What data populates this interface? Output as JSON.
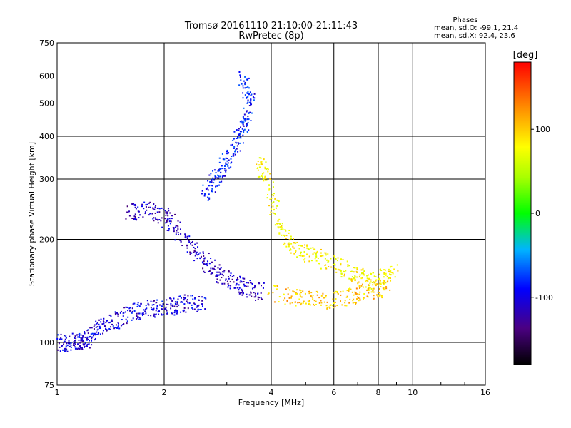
{
  "chart_data": {
    "type": "scatter",
    "title": "Tromsø 20161110 21:10:00-21:11:43",
    "subtitle": "RwPretec (8p)",
    "xlabel": "Frequency [MHz]",
    "ylabel": "Stationary phase Virtual Height [km]",
    "x_scale": "log",
    "y_scale": "log",
    "xlim": [
      1,
      16
    ],
    "ylim": [
      75,
      750
    ],
    "x_ticks": [
      "1",
      "2",
      "4",
      "6",
      "8",
      "10",
      "16"
    ],
    "x_tick_values": [
      1,
      2,
      4,
      6,
      8,
      10,
      16
    ],
    "y_ticks": [
      "75",
      "100",
      "200",
      "300",
      "400",
      "500",
      "600",
      "750"
    ],
    "y_tick_values": [
      75,
      100,
      200,
      300,
      400,
      500,
      600,
      750
    ],
    "grid": true,
    "phases_box": {
      "header": "Phases",
      "line_o": "mean, sd,O: -99.1, 21.4",
      "line_x": "mean, sd,X:  92.4, 23.6"
    },
    "colorbar": {
      "label": "[deg]",
      "ticks": [
        "100",
        "0",
        "-100"
      ],
      "tick_values": [
        100,
        0,
        -100
      ],
      "range": [
        -180,
        180
      ]
    },
    "clusters": [
      {
        "name": "o-trace-low",
        "points": [
          [
            1.02,
            100
          ],
          [
            1.1,
            100
          ],
          [
            1.18,
            101
          ],
          [
            1.25,
            106
          ],
          [
            1.35,
            112
          ],
          [
            1.5,
            118
          ],
          [
            1.7,
            124
          ],
          [
            1.9,
            126
          ],
          [
            2.1,
            128
          ],
          [
            2.3,
            130
          ],
          [
            2.6,
            131
          ]
        ],
        "phase": -110
      },
      {
        "name": "o-trace-mid",
        "points": [
          [
            1.6,
            240
          ],
          [
            1.8,
            245
          ],
          [
            2.0,
            235
          ],
          [
            2.2,
            210
          ],
          [
            2.5,
            180
          ],
          [
            2.8,
            160
          ],
          [
            3.1,
            150
          ],
          [
            3.4,
            145
          ],
          [
            3.8,
            140
          ]
        ],
        "phase": -120
      },
      {
        "name": "o-trace-high",
        "points": [
          [
            2.6,
            270
          ],
          [
            2.8,
            300
          ],
          [
            3.0,
            340
          ],
          [
            3.2,
            380
          ],
          [
            3.4,
            440
          ],
          [
            3.5,
            520
          ],
          [
            3.3,
            600
          ]
        ],
        "phase": -95
      },
      {
        "name": "x-trace",
        "points": [
          [
            3.7,
            330
          ],
          [
            3.9,
            300
          ],
          [
            4.2,
            220
          ],
          [
            4.6,
            190
          ],
          [
            5.2,
            180
          ],
          [
            6.0,
            170
          ],
          [
            6.8,
            160
          ],
          [
            7.5,
            150
          ],
          [
            8.2,
            155
          ],
          [
            9.0,
            160
          ]
        ],
        "phase": 90
      },
      {
        "name": "x-trace-low",
        "points": [
          [
            4.0,
            140
          ],
          [
            4.8,
            135
          ],
          [
            5.5,
            132
          ],
          [
            6.5,
            135
          ],
          [
            7.5,
            140
          ],
          [
            8.5,
            145
          ]
        ],
        "phase": 110
      }
    ]
  }
}
